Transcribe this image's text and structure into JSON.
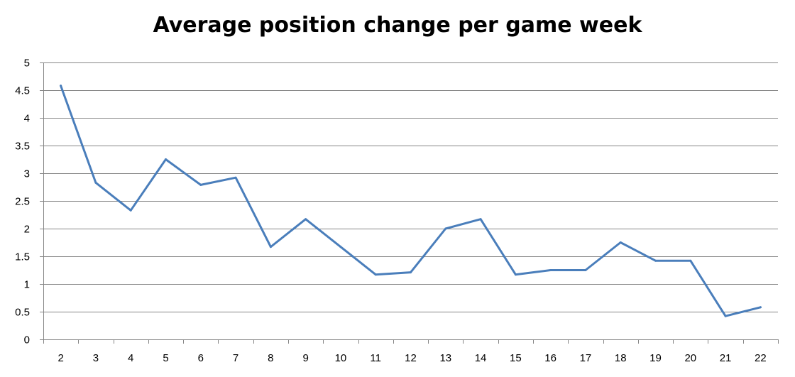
{
  "chart_data": {
    "type": "line",
    "title": "Average position change per game week",
    "xlabel": "",
    "ylabel": "",
    "categories": [
      "2",
      "3",
      "4",
      "5",
      "6",
      "7",
      "8",
      "9",
      "10",
      "11",
      "12",
      "13",
      "14",
      "15",
      "16",
      "17",
      "18",
      "19",
      "20",
      "21",
      "22"
    ],
    "series": [
      {
        "values": [
          4.58,
          2.83,
          2.33,
          3.25,
          2.79,
          2.92,
          1.67,
          2.17,
          1.67,
          1.17,
          1.21,
          2.0,
          2.17,
          1.17,
          1.25,
          1.25,
          1.75,
          1.42,
          1.42,
          0.42,
          0.58
        ]
      }
    ],
    "ylim": [
      0,
      5
    ],
    "yticks": [
      "0",
      "0.5",
      "1",
      "1.5",
      "2",
      "2.5",
      "3",
      "3.5",
      "4",
      "4.5",
      "5"
    ],
    "grid": true,
    "legend": "none",
    "colors": {
      "line": "#4a7ebb",
      "grid": "#868686",
      "axis": "#868686"
    }
  }
}
